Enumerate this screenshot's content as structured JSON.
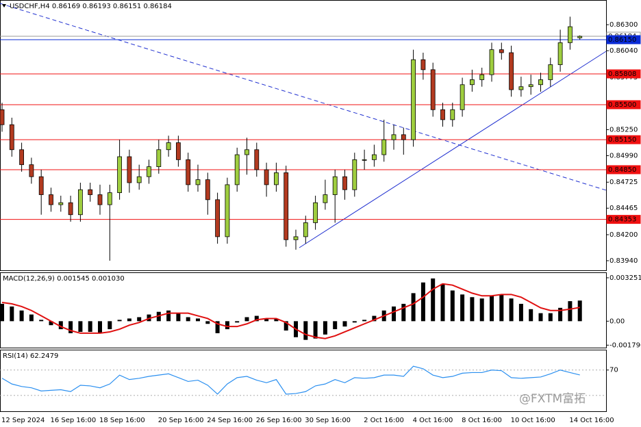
{
  "chart_data": [
    {
      "type": "candlestick",
      "title": "USDCHF,H4  0.86169 0.86193 0.86151 0.86184",
      "categories": [
        "12 Sep 2024",
        null,
        null,
        null,
        null,
        "16 Sep 16:00",
        null,
        null,
        null,
        null,
        "18 Sep 16:00",
        null,
        null,
        null,
        null,
        null,
        "20 Sep 16:00",
        null,
        null,
        null,
        null,
        "24 Sep 16:00",
        null,
        null,
        null,
        null,
        "26 Sep 16:00",
        null,
        null,
        null,
        null,
        "30 Sep 16:00",
        null,
        null,
        null,
        null,
        null,
        "2 Oct 16:00",
        null,
        null,
        null,
        null,
        "4 Oct 16:00",
        null,
        null,
        null,
        null,
        "8 Oct 16:00",
        null,
        null,
        null,
        null,
        "10 Oct 16:00",
        null,
        null,
        null,
        null,
        null,
        "14 Oct 16:00",
        null
      ],
      "open": [
        0.8545,
        0.853,
        0.8505,
        0.849,
        0.8478,
        0.846,
        0.845,
        0.8452,
        0.844,
        0.8465,
        0.846,
        0.845,
        0.8462,
        0.8498,
        0.8472,
        0.8478,
        0.8488,
        0.8505,
        0.8512,
        0.8495,
        0.847,
        0.8475,
        0.8455,
        0.8418,
        0.847,
        0.85,
        0.8505,
        0.8485,
        0.847,
        0.8482,
        0.8415,
        0.8418,
        0.8432,
        0.8452,
        0.846,
        0.8478,
        0.8465,
        0.8495,
        0.8495,
        0.85,
        0.8515,
        0.852,
        0.8515,
        0.8595,
        0.8585,
        0.8545,
        0.8535,
        0.8545,
        0.857,
        0.8575,
        0.858,
        0.8605,
        0.8602,
        0.8565,
        0.8568,
        0.857,
        0.8575,
        0.859,
        0.8612,
        0.86169
      ],
      "high": [
        0.8552,
        0.8537,
        0.8512,
        0.8497,
        0.8485,
        0.8467,
        0.8459,
        0.8459,
        0.8472,
        0.8472,
        0.847,
        0.847,
        0.8515,
        0.8505,
        0.849,
        0.8495,
        0.8515,
        0.8519,
        0.8519,
        0.8502,
        0.849,
        0.8482,
        0.8462,
        0.8477,
        0.8507,
        0.8517,
        0.8512,
        0.8492,
        0.8492,
        0.8489,
        0.8425,
        0.8439,
        0.8459,
        0.8475,
        0.8485,
        0.8485,
        0.8502,
        0.8505,
        0.851,
        0.8535,
        0.853,
        0.8527,
        0.8605,
        0.8602,
        0.8592,
        0.8552,
        0.8552,
        0.8577,
        0.8585,
        0.8587,
        0.8612,
        0.8612,
        0.8609,
        0.8578,
        0.858,
        0.8582,
        0.8597,
        0.8625,
        0.8638,
        0.86193
      ],
      "low": [
        0.8523,
        0.8498,
        0.8483,
        0.8471,
        0.844,
        0.8443,
        0.8443,
        0.8433,
        0.8433,
        0.8453,
        0.844,
        0.8394,
        0.8455,
        0.8462,
        0.8465,
        0.8471,
        0.8481,
        0.8498,
        0.8488,
        0.8463,
        0.8463,
        0.844,
        0.8411,
        0.8411,
        0.8463,
        0.848,
        0.8478,
        0.8458,
        0.8463,
        0.8408,
        0.8405,
        0.8411,
        0.8425,
        0.8445,
        0.8432,
        0.8455,
        0.8458,
        0.8485,
        0.8488,
        0.8493,
        0.8505,
        0.85,
        0.8508,
        0.8575,
        0.8538,
        0.8528,
        0.8528,
        0.8538,
        0.8563,
        0.8568,
        0.8573,
        0.8595,
        0.8558,
        0.8558,
        0.856,
        0.8563,
        0.8568,
        0.8583,
        0.8605,
        0.86151
      ],
      "close": [
        0.853,
        0.8505,
        0.849,
        0.8478,
        0.846,
        0.845,
        0.8452,
        0.844,
        0.8465,
        0.846,
        0.845,
        0.8462,
        0.8498,
        0.8472,
        0.8478,
        0.8488,
        0.8505,
        0.8512,
        0.8495,
        0.847,
        0.8475,
        0.8455,
        0.8418,
        0.847,
        0.85,
        0.8505,
        0.8485,
        0.847,
        0.8482,
        0.8415,
        0.8418,
        0.8432,
        0.8452,
        0.846,
        0.8478,
        0.8465,
        0.8495,
        0.8495,
        0.85,
        0.8515,
        0.852,
        0.8515,
        0.8595,
        0.8585,
        0.8545,
        0.8535,
        0.8545,
        0.857,
        0.8575,
        0.858,
        0.8605,
        0.8602,
        0.8565,
        0.8568,
        0.857,
        0.8575,
        0.859,
        0.8612,
        0.8628,
        0.86184
      ],
      "up_color": "#9fce3f",
      "down_color": "#b23a20",
      "ylim": [
        0.83844,
        0.8654
      ],
      "yticks": [
        {
          "value": 0.863,
          "label": "0.86300"
        },
        {
          "value": 0.8604,
          "label": "0.86040"
        },
        {
          "value": 0.85775,
          "label": "0.85775"
        },
        {
          "value": 0.8525,
          "label": "0.85250"
        },
        {
          "value": 0.8499,
          "label": "0.84990"
        },
        {
          "value": 0.84725,
          "label": "0.84725"
        },
        {
          "value": 0.84465,
          "label": "0.84465"
        },
        {
          "value": 0.842,
          "label": "0.84200"
        },
        {
          "value": 0.8394,
          "label": "0.83940"
        }
      ],
      "levels": [
        {
          "value": 0.86184,
          "label": "0.86184",
          "color": "#9a9a9a",
          "text_color": "#000000"
        },
        {
          "value": 0.8615,
          "label": "0.86150",
          "color": "#0a2bd6",
          "text_color": "#ffffff"
        },
        {
          "value": 0.85808,
          "label": "0.85808",
          "color": "#f01010",
          "text_color": "#ffffff"
        },
        {
          "value": 0.855,
          "label": "0.85500",
          "color": "#f01010",
          "text_color": "#ffffff"
        },
        {
          "value": 0.8515,
          "label": "0.85150",
          "color": "#f01010",
          "text_color": "#ffffff"
        },
        {
          "value": 0.8485,
          "label": "0.84850",
          "color": "#f01010",
          "text_color": "#ffffff"
        },
        {
          "value": 0.84353,
          "label": "0.84353",
          "color": "#f01010",
          "text_color": "#ffffff"
        }
      ]
    },
    {
      "type": "macd",
      "title": "MACD(12,26,9) 0.001545 0.001030",
      "histogram": [
        0.0013,
        0.0011,
        0.0008,
        0.0005,
        0.0001,
        -0.0003,
        -0.0006,
        -0.0009,
        -0.0008,
        -0.0008,
        -0.0009,
        -0.0006,
        0.0001,
        0.0002,
        0.0003,
        0.0005,
        0.0007,
        0.0008,
        0.0006,
        0.0003,
        0.0002,
        -0.0002,
        -0.0009,
        -0.0006,
        -0.0001,
        0.0003,
        0.0004,
        0.0002,
        0.0002,
        -0.0007,
        -0.0012,
        -0.0014,
        -0.0013,
        -0.001,
        -0.0006,
        -0.0004,
        -0.0001,
        0.0001,
        0.0004,
        0.0008,
        0.0011,
        0.0013,
        0.0021,
        0.0029,
        0.0032,
        0.0028,
        0.0023,
        0.002,
        0.0018,
        0.0017,
        0.0019,
        0.002,
        0.0017,
        0.0013,
        0.0009,
        0.0006,
        0.0006,
        0.001,
        0.0015,
        0.001545
      ],
      "signal": [
        0.0014,
        0.0013,
        0.0011,
        0.0008,
        0.0004,
        0.0,
        -0.0004,
        -0.0007,
        -0.0009,
        -0.0009,
        -0.0009,
        -0.0008,
        -0.0006,
        -0.0003,
        -0.0001,
        0.0002,
        0.0004,
        0.0006,
        0.0006,
        0.0006,
        0.0004,
        0.0002,
        -0.0002,
        -0.0004,
        -0.0004,
        -0.0002,
        0.0001,
        0.0002,
        0.0002,
        -0.0001,
        -0.0006,
        -0.001,
        -0.0012,
        -0.0013,
        -0.0011,
        -0.0008,
        -0.0005,
        -0.0002,
        0.0001,
        0.0004,
        0.0007,
        0.001,
        0.0013,
        0.0018,
        0.0024,
        0.0028,
        0.0027,
        0.0024,
        0.0021,
        0.0019,
        0.0019,
        0.002,
        0.002,
        0.0018,
        0.0014,
        0.001,
        0.0008,
        0.0008,
        0.0009,
        0.00103
      ],
      "histogram_color": "#000000",
      "signal_color": "#e01010",
      "ylim": [
        -0.001981,
        0.003607
      ],
      "yticks": [
        0.003251,
        {
          "value": 0,
          "label": "0.00"
        },
        -0.001796
      ]
    },
    {
      "type": "rsi",
      "title": "RSI(14) 62.2479",
      "values": [
        57,
        48,
        44,
        42,
        37,
        38,
        39,
        36,
        46,
        45,
        42,
        48,
        62,
        55,
        57,
        60,
        62,
        64,
        58,
        52,
        54,
        46,
        32,
        48,
        58,
        60,
        54,
        50,
        55,
        32,
        33,
        36,
        45,
        48,
        55,
        50,
        58,
        57,
        58,
        62,
        62,
        60,
        76,
        72,
        62,
        58,
        60,
        65,
        66,
        66,
        70,
        69,
        58,
        57,
        58,
        59,
        64,
        70,
        66,
        62.2479
      ],
      "color": "#2a8ff0",
      "ylim": [
        5,
        101
      ],
      "yticks": [
        70
      ],
      "levels": [
        70,
        30
      ]
    }
  ],
  "watermark": "@FXTM富拓"
}
